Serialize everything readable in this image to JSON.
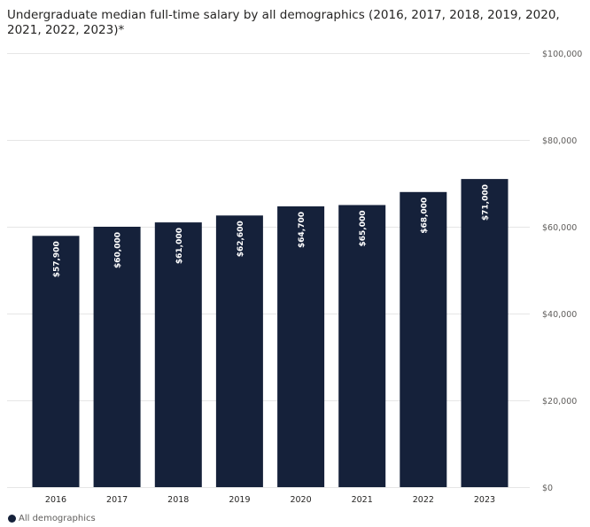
{
  "chart_data": {
    "type": "bar",
    "title": "Undergraduate median full-time salary by all demographics (2016, 2017, 2018, 2019, 2020, 2021, 2022, 2023)*",
    "categories": [
      "2016",
      "2017",
      "2018",
      "2019",
      "2020",
      "2021",
      "2022",
      "2023"
    ],
    "series": [
      {
        "name": "All demographics",
        "color": "#15213a",
        "values": [
          57900,
          60000,
          61000,
          62600,
          64700,
          65000,
          68000,
          71000
        ],
        "labels": [
          "$57,900",
          "$60,000",
          "$61,000",
          "$62,600",
          "$64,700",
          "$65,000",
          "$68,000",
          "$71,000"
        ]
      }
    ],
    "ylim": [
      0,
      100000
    ],
    "yticks": [
      0,
      20000,
      40000,
      60000,
      80000,
      100000
    ],
    "ytick_labels": [
      "$0",
      "$20,000",
      "$40,000",
      "$60,000",
      "$80,000",
      "$100,000"
    ],
    "grid": true,
    "legend": "bottom-left",
    "xlabel": "",
    "ylabel": ""
  },
  "legend": {
    "label": "All demographics",
    "color": "#15213a"
  }
}
